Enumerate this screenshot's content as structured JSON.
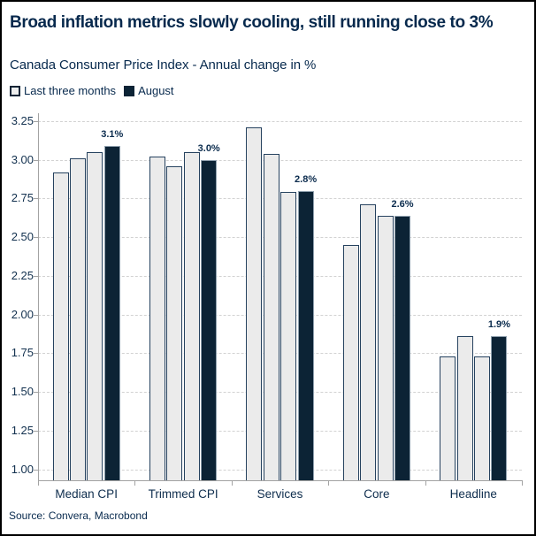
{
  "header": {
    "title": "Broad inflation metrics slowly cooling, still running close to 3%",
    "subtitle": "Canada Consumer Price Index - Annual change in %"
  },
  "legend": {
    "items": [
      {
        "label": "Last three months",
        "swatch": "outlined-square"
      },
      {
        "label": "August",
        "swatch": "filled-square"
      }
    ]
  },
  "footer": {
    "source": "Source: Convera, Macrobond"
  },
  "colors": {
    "text_navy": "#07294d",
    "bar_light_fill": "#ebebeb",
    "bar_light_border": "#26425f",
    "bar_dark_fill": "#0c2335",
    "bar_dark_border": "#8fa0ae",
    "gridline": "#d2d2d2",
    "axis": "#a3a3a3"
  },
  "chart_data": {
    "type": "bar",
    "title": "Broad inflation metrics slowly cooling, still running close to 3%",
    "subtitle": "Canada Consumer Price Index - Annual change in %",
    "xlabel": "",
    "ylabel": "Annual change in %",
    "categories": [
      "Median CPI",
      "Trimmed CPI",
      "Services",
      "Core",
      "Headline"
    ],
    "series": [
      {
        "name": "Last three months",
        "style": "light-outlined",
        "values": [
          [
            2.92,
            3.01,
            3.05
          ],
          [
            3.02,
            2.96,
            3.05
          ],
          [
            3.21,
            3.04,
            2.79
          ],
          [
            2.45,
            2.71,
            2.64
          ],
          [
            1.73,
            1.86,
            1.73
          ]
        ]
      },
      {
        "name": "August",
        "style": "dark-filled",
        "values": [
          3.09,
          3.0,
          2.8,
          2.64,
          1.86
        ],
        "data_labels": [
          "3.1%",
          "3.0%",
          "2.8%",
          "2.6%",
          "1.9%"
        ]
      }
    ],
    "yticks": [
      1.0,
      1.25,
      1.5,
      1.75,
      2.0,
      2.25,
      2.5,
      2.75,
      3.0,
      3.25
    ],
    "ylim": [
      0.93,
      3.3
    ],
    "grid": "horizontal-dashed",
    "legend_position": "top-left"
  }
}
